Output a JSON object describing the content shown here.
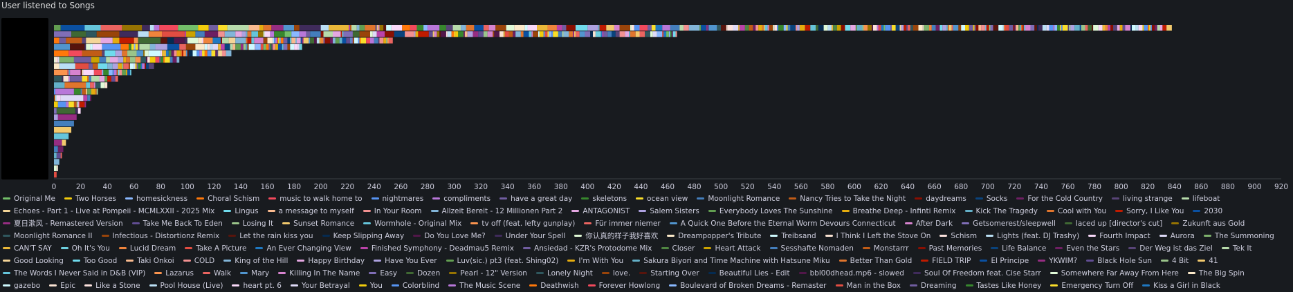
{
  "panel": {
    "title": "User listened to Songs"
  },
  "chart_data": {
    "type": "bar",
    "orientation": "horizontal-stacked",
    "title": "User listened to Songs",
    "xlim": [
      0,
      920
    ],
    "xticks": [
      0,
      20,
      40,
      60,
      80,
      100,
      120,
      140,
      160,
      180,
      200,
      220,
      240,
      260,
      280,
      300,
      320,
      340,
      360,
      380,
      400,
      420,
      440,
      460,
      480,
      500,
      520,
      540,
      560,
      580,
      600,
      620,
      640,
      660,
      680,
      700,
      720,
      740,
      760,
      780,
      800,
      820,
      840,
      860,
      880,
      900,
      920
    ],
    "grid": false,
    "legend": "bottom",
    "bar_totals": [
      838,
      467,
      254,
      186,
      133,
      94,
      75,
      58,
      48,
      40,
      33,
      28,
      24,
      20,
      17,
      15,
      13,
      11,
      9,
      7,
      6,
      4,
      3,
      2
    ],
    "series": [
      {
        "name": "Original Me",
        "color": "#73bf69"
      },
      {
        "name": "Two Horses",
        "color": "#f2cc0c"
      },
      {
        "name": "homesickness",
        "color": "#8ab8ff"
      },
      {
        "name": "Choral Schism",
        "color": "#ff780a"
      },
      {
        "name": "music to walk home to",
        "color": "#f2495c"
      },
      {
        "name": "nightmares",
        "color": "#5794f2"
      },
      {
        "name": "compliments",
        "color": "#b877d9"
      },
      {
        "name": "have a great day",
        "color": "#705da0"
      },
      {
        "name": "skeletons",
        "color": "#37872d"
      },
      {
        "name": "ocean view",
        "color": "#fade2a"
      },
      {
        "name": "Moonlight Romance",
        "color": "#447ebc"
      },
      {
        "name": "Nancy Tries to Take the Night",
        "color": "#c15c17"
      },
      {
        "name": "daydreams",
        "color": "#890f02"
      },
      {
        "name": "Socks",
        "color": "#0a437c"
      },
      {
        "name": "For the Cold Country",
        "color": "#6d1f62"
      },
      {
        "name": "living strange",
        "color": "#584477"
      },
      {
        "name": "lifeboat",
        "color": "#b7dbab"
      },
      {
        "name": "Echoes - Part 1 - Live at Pompeii - MCMLXXII - 2025 Mix",
        "color": "#f4d598"
      },
      {
        "name": "Lingus",
        "color": "#70dbed"
      },
      {
        "name": "a message to myself",
        "color": "#f9ba8f"
      },
      {
        "name": "In Your Room",
        "color": "#f29191"
      },
      {
        "name": "Allzeit Bereit - 12 Millionen Part 2",
        "color": "#82b5d8"
      },
      {
        "name": "ANTAGONIST",
        "color": "#e5a8e2"
      },
      {
        "name": "Salem Sisters",
        "color": "#aea2e0"
      },
      {
        "name": "Everybody Loves The Sunshine",
        "color": "#629e51"
      },
      {
        "name": "Breathe Deep - Infinti Remix",
        "color": "#e5ac0e"
      },
      {
        "name": "Kick The Tragedy",
        "color": "#64b0c8"
      },
      {
        "name": "Cool with You",
        "color": "#e0752d"
      },
      {
        "name": "Sorry, I Like You",
        "color": "#bf1b00"
      },
      {
        "name": "2030",
        "color": "#0a50a1"
      },
      {
        "name": "夏日漱风 - Remastered Version",
        "color": "#962d82"
      },
      {
        "name": "Take Me Back To Eden",
        "color": "#614d93"
      },
      {
        "name": "Losing It",
        "color": "#9ac48a"
      },
      {
        "name": "Sunset Romance",
        "color": "#f2c96d"
      },
      {
        "name": "Wormhole - Original Mix",
        "color": "#65c5db"
      },
      {
        "name": "tv off (feat. lefty gunplay)",
        "color": "#f9934e"
      },
      {
        "name": "Für immer niemer",
        "color": "#ea6460"
      },
      {
        "name": "A Quick One Before the Eternal Worm Devours Connecticut",
        "color": "#5195ce"
      },
      {
        "name": "After Dark",
        "color": "#d683ce"
      },
      {
        "name": "Getsomerest/sleepwell",
        "color": "#806eb7"
      },
      {
        "name": "laced up [director's cut]",
        "color": "#3f6833"
      },
      {
        "name": "Zukunft aus Gold",
        "color": "#967302"
      },
      {
        "name": "Moonlight Romance II",
        "color": "#2f575e"
      },
      {
        "name": "Infectious - Distortionz Remix",
        "color": "#99440a"
      },
      {
        "name": "Let the rain kiss you",
        "color": "#58140c"
      },
      {
        "name": "Keep Slipping Away",
        "color": "#052b51"
      },
      {
        "name": "Do You Love Me?",
        "color": "#511749"
      },
      {
        "name": "Under Your Spell",
        "color": "#3f2b5b"
      },
      {
        "name": "你认真的样子我好喜欢",
        "color": "#e0f9d7"
      },
      {
        "name": "Dreampopper's Tribute",
        "color": "#fceaca"
      },
      {
        "name": "Treibsand",
        "color": "#cffaff"
      },
      {
        "name": "I Think I Left the Stove On",
        "color": "#f9e2d2"
      },
      {
        "name": "Schism",
        "color": "#fce2de"
      },
      {
        "name": "Lights (feat. DJ Trashy)",
        "color": "#badff4"
      },
      {
        "name": "Fourth Impact",
        "color": "#f9d9f9"
      },
      {
        "name": "Aurora",
        "color": "#dedaf7"
      },
      {
        "name": "The Summoning",
        "color": "#7eb26d"
      },
      {
        "name": "CAN'T SAY",
        "color": "#eab839"
      },
      {
        "name": "Oh It's You",
        "color": "#6ed0e0"
      },
      {
        "name": "Lucid Dream",
        "color": "#ef843c"
      },
      {
        "name": "Take A Picture",
        "color": "#e24d42"
      },
      {
        "name": "An Ever Changing View",
        "color": "#1f78c1"
      },
      {
        "name": "Finished Symphony - Deadmau5 Remix",
        "color": "#ba43a9"
      },
      {
        "name": "Ansiedad - KZR's Protodome Mix",
        "color": "#705da0"
      },
      {
        "name": "Closer",
        "color": "#508642"
      },
      {
        "name": "Heart Attack",
        "color": "#cca300"
      },
      {
        "name": "Sesshafte Nomaden",
        "color": "#447ebc"
      },
      {
        "name": "Monstarrr",
        "color": "#c15c17"
      },
      {
        "name": "Past Memories",
        "color": "#890f02"
      },
      {
        "name": "Life Balance",
        "color": "#0a437c"
      },
      {
        "name": "Even the Stars",
        "color": "#6d1f62"
      },
      {
        "name": "Der Weg ist das Ziel",
        "color": "#584477"
      },
      {
        "name": "Tek It",
        "color": "#b7dbab"
      },
      {
        "name": "Good Looking",
        "color": "#f4d598"
      },
      {
        "name": "Too Good",
        "color": "#70dbed"
      },
      {
        "name": "Taki Onkoi",
        "color": "#f9ba8f"
      },
      {
        "name": "COLD",
        "color": "#f29191"
      },
      {
        "name": "King of the Hill",
        "color": "#82b5d8"
      },
      {
        "name": "Happy Birthday",
        "color": "#e5a8e2"
      },
      {
        "name": "Have You Ever",
        "color": "#aea2e0"
      },
      {
        "name": "Luv(sic.) pt3 (feat. Shing02)",
        "color": "#629e51"
      },
      {
        "name": "I'm With You",
        "color": "#e5ac0e"
      },
      {
        "name": "Sakura Biyori and Time Machine with Hatsune Miku",
        "color": "#64b0c8"
      },
      {
        "name": "Better Than Gold",
        "color": "#e0752d"
      },
      {
        "name": "FIELD TRIP",
        "color": "#bf1b00"
      },
      {
        "name": "El Principe",
        "color": "#0a50a1"
      },
      {
        "name": "YKWIM?",
        "color": "#962d82"
      },
      {
        "name": "Black Hole Sun",
        "color": "#614d93"
      },
      {
        "name": "4 Bit",
        "color": "#9ac48a"
      },
      {
        "name": "41",
        "color": "#f2c96d"
      },
      {
        "name": "The Words I Never Said in D&B (VIP)",
        "color": "#65c5db"
      },
      {
        "name": "Lazarus",
        "color": "#f9934e"
      },
      {
        "name": "Walk",
        "color": "#ea6460"
      },
      {
        "name": "Mary",
        "color": "#5195ce"
      },
      {
        "name": "Killing In The Name",
        "color": "#d683ce"
      },
      {
        "name": "Easy",
        "color": "#806eb7"
      },
      {
        "name": "Dozen",
        "color": "#3f6833"
      },
      {
        "name": "Pearl - 12\" Version",
        "color": "#967302"
      },
      {
        "name": "Lonely Night",
        "color": "#2f575e"
      },
      {
        "name": "love.",
        "color": "#99440a"
      },
      {
        "name": "Starting Over",
        "color": "#58140c"
      },
      {
        "name": "Beautiful Lies - Edit",
        "color": "#052b51"
      },
      {
        "name": "bbl00dhead.mp6 - slowed",
        "color": "#511749"
      },
      {
        "name": "Soul Of Freedom feat. Cise Starr",
        "color": "#3f2b5b"
      },
      {
        "name": "Somewhere Far Away From Here",
        "color": "#e0f9d7"
      },
      {
        "name": "The Big Spin",
        "color": "#fceaca"
      },
      {
        "name": "gazebo",
        "color": "#cffaff"
      },
      {
        "name": "Epic",
        "color": "#f9e2d2"
      },
      {
        "name": "Like a Stone",
        "color": "#fce2de"
      },
      {
        "name": "Pool House (Live)",
        "color": "#badff4"
      },
      {
        "name": "heart pt. 6",
        "color": "#f9d9f9"
      },
      {
        "name": "Your Betrayal",
        "color": "#dedaf7"
      },
      {
        "name": "You",
        "color": "#f2cc0c"
      },
      {
        "name": "Colorblind",
        "color": "#5794f2"
      },
      {
        "name": "The Music Scene",
        "color": "#b877d9"
      },
      {
        "name": "Deathwish",
        "color": "#ff780a"
      },
      {
        "name": "Forever Howlong",
        "color": "#f2495c"
      },
      {
        "name": "Boulevard of Broken Dreams - Remaster",
        "color": "#8ab8ff"
      },
      {
        "name": "Man in the Box",
        "color": "#e24d42"
      },
      {
        "name": "Dreaming",
        "color": "#705da0"
      },
      {
        "name": "Tastes Like Honey",
        "color": "#37872d"
      },
      {
        "name": "Emergency Turn Off",
        "color": "#fade2a"
      },
      {
        "name": "Kiss a Girl in Black",
        "color": "#1f78c1"
      }
    ]
  }
}
